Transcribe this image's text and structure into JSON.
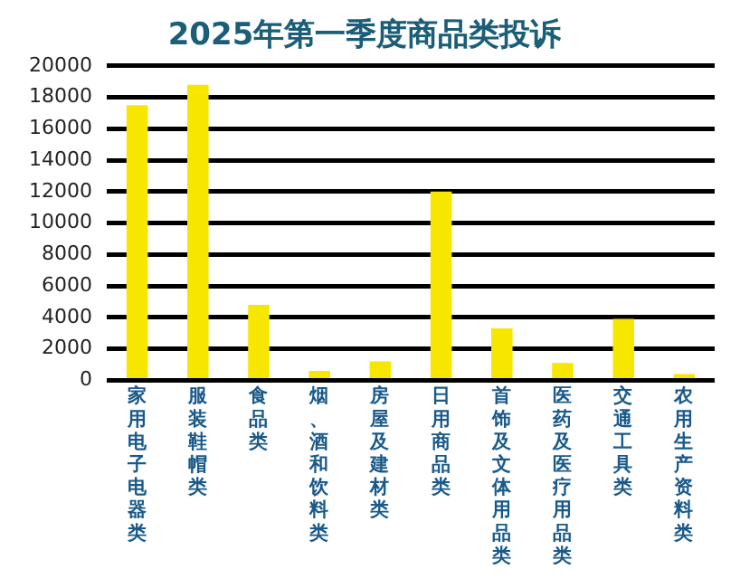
{
  "chart_data": {
    "type": "bar",
    "title": "2025年第一季度商品类投诉",
    "categories": [
      "家用电子电器类",
      "服装鞋帽类",
      "食品类",
      "烟、酒和饮料类",
      "房屋及建材类",
      "日用商品类",
      "首饰及文体用品类",
      "医药及医疗用品类",
      "交通工具类",
      "农用生产资料类"
    ],
    "values": [
      17500,
      18800,
      4800,
      600,
      1200,
      12000,
      3300,
      1100,
      3900,
      400
    ],
    "color": "#f7e600",
    "ylim": [
      0,
      20000
    ],
    "yticks": [
      0,
      2000,
      4000,
      6000,
      8000,
      10000,
      12000,
      14000,
      16000,
      18000,
      20000
    ],
    "grid": "y",
    "legend": false
  }
}
